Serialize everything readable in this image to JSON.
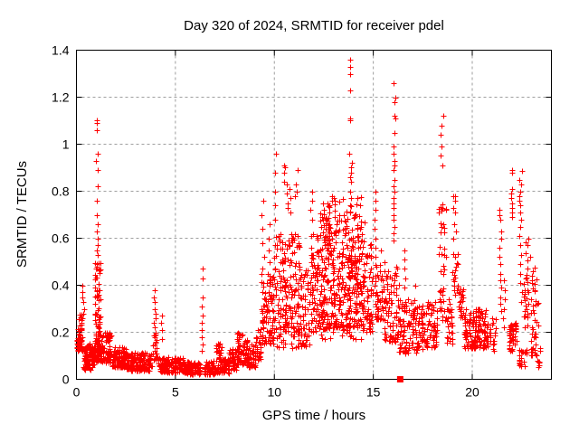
{
  "chart_data": {
    "type": "scatter",
    "title": "Day 320 of 2024, SRMTID for receiver pdel",
    "xlabel": "GPS time / hours",
    "ylabel": "SRMTID / TECUs",
    "xlim": [
      0,
      24
    ],
    "ylim": [
      0,
      1.4
    ],
    "x_ticks": [
      {
        "v": 0,
        "label": "0"
      },
      {
        "v": 5,
        "label": "5"
      },
      {
        "v": 10,
        "label": "10"
      },
      {
        "v": 15,
        "label": "15"
      },
      {
        "v": 20,
        "label": "20"
      }
    ],
    "y_ticks": [
      {
        "v": 0,
        "label": "0"
      },
      {
        "v": 0.2,
        "label": "0.2"
      },
      {
        "v": 0.4,
        "label": "0.4"
      },
      {
        "v": 0.6,
        "label": "0.6"
      },
      {
        "v": 0.8,
        "label": "0.8"
      },
      {
        "v": 1.0,
        "label": "1"
      },
      {
        "v": 1.2,
        "label": "1.2"
      },
      {
        "v": 1.4,
        "label": "1.4"
      }
    ],
    "grid": true,
    "legend": "none",
    "marker": "plus",
    "marker_color": "#ff0000",
    "grid_color": "#9e9e9e",
    "border_color": "#000000",
    "seed": 1320,
    "clusters": [
      {
        "x0": 0.0,
        "x1": 0.1,
        "n": 14,
        "y0": 0.12,
        "y1": 0.22,
        "bias": 1.0
      },
      {
        "x0": 0.1,
        "x1": 0.3,
        "n": 40,
        "y0": 0.12,
        "y1": 0.28,
        "bias": 1.2
      },
      {
        "x0": 0.33,
        "x1": 0.72,
        "n": 60,
        "y0": 0.04,
        "y1": 0.16,
        "bias": 1.3
      },
      {
        "x0": 0.72,
        "x1": 0.92,
        "n": 30,
        "y0": 0.05,
        "y1": 0.14,
        "bias": 1.2
      },
      {
        "x0": 0.92,
        "x1": 1.22,
        "n": 110,
        "y0": 0.08,
        "y1": 0.5,
        "bias": 1.9
      },
      {
        "x0": 1.22,
        "x1": 1.75,
        "n": 70,
        "y0": 0.07,
        "y1": 0.2,
        "bias": 1.5
      },
      {
        "x0": 1.75,
        "x1": 2.5,
        "n": 85,
        "y0": 0.05,
        "y1": 0.14,
        "bias": 1.4
      },
      {
        "x0": 2.5,
        "x1": 3.8,
        "n": 150,
        "y0": 0.035,
        "y1": 0.115,
        "bias": 1.3
      },
      {
        "x0": 3.85,
        "x1": 4.1,
        "n": 20,
        "y0": 0.08,
        "y1": 0.2,
        "bias": 1.2
      },
      {
        "x0": 4.1,
        "x1": 5.4,
        "n": 140,
        "y0": 0.03,
        "y1": 0.095,
        "bias": 1.3
      },
      {
        "x0": 5.4,
        "x1": 6.25,
        "n": 100,
        "y0": 0.02,
        "y1": 0.075,
        "bias": 1.2
      },
      {
        "x0": 6.45,
        "x1": 7.0,
        "n": 60,
        "y0": 0.02,
        "y1": 0.08,
        "bias": 1.2
      },
      {
        "x0": 7.0,
        "x1": 7.35,
        "n": 40,
        "y0": 0.03,
        "y1": 0.16,
        "bias": 1.6
      },
      {
        "x0": 7.35,
        "x1": 7.7,
        "n": 40,
        "y0": 0.025,
        "y1": 0.09,
        "bias": 1.2
      },
      {
        "x0": 7.7,
        "x1": 8.1,
        "n": 50,
        "y0": 0.04,
        "y1": 0.13,
        "bias": 1.2
      },
      {
        "x0": 8.1,
        "x1": 8.65,
        "n": 70,
        "y0": 0.06,
        "y1": 0.2,
        "bias": 1.2
      },
      {
        "x0": 8.65,
        "x1": 9.05,
        "n": 45,
        "y0": 0.05,
        "y1": 0.15,
        "bias": 1.2
      },
      {
        "x0": 9.05,
        "x1": 9.35,
        "n": 30,
        "y0": 0.08,
        "y1": 0.22,
        "bias": 1.2
      },
      {
        "x0": 9.35,
        "x1": 9.95,
        "n": 90,
        "y0": 0.15,
        "y1": 0.45,
        "bias": 1.4
      },
      {
        "x0": 9.95,
        "x1": 11.3,
        "n": 170,
        "y0": 0.2,
        "y1": 0.62,
        "bias": 1.4
      },
      {
        "x0": 10.1,
        "x1": 11.3,
        "n": 22,
        "y0": 0.13,
        "y1": 0.2,
        "bias": 1.0
      },
      {
        "x0": 11.3,
        "x1": 11.8,
        "n": 55,
        "y0": 0.14,
        "y1": 0.48,
        "bias": 1.3
      },
      {
        "x0": 11.8,
        "x1": 12.25,
        "n": 65,
        "y0": 0.2,
        "y1": 0.62,
        "bias": 1.4
      },
      {
        "x0": 12.25,
        "x1": 14.6,
        "n": 430,
        "y0": 0.22,
        "y1": 0.72,
        "bias": 1.3
      },
      {
        "x0": 12.25,
        "x1": 14.6,
        "n": 35,
        "y0": 0.17,
        "y1": 0.24,
        "bias": 1.0
      },
      {
        "x0": 12.3,
        "x1": 14.5,
        "n": 18,
        "y0": 0.72,
        "y1": 0.78,
        "bias": 1.0
      },
      {
        "x0": 14.6,
        "x1": 15.0,
        "n": 45,
        "y0": 0.2,
        "y1": 0.58,
        "bias": 1.3
      },
      {
        "x0": 15.1,
        "x1": 15.55,
        "n": 45,
        "y0": 0.25,
        "y1": 0.55,
        "bias": 1.3
      },
      {
        "x0": 15.55,
        "x1": 16.3,
        "n": 80,
        "y0": 0.16,
        "y1": 0.48,
        "bias": 1.4
      },
      {
        "x0": 16.3,
        "x1": 17.3,
        "n": 100,
        "y0": 0.11,
        "y1": 0.34,
        "bias": 1.3
      },
      {
        "x0": 17.3,
        "x1": 18.25,
        "n": 85,
        "y0": 0.13,
        "y1": 0.33,
        "bias": 1.2
      },
      {
        "x0": 18.3,
        "x1": 18.7,
        "n": 40,
        "y0": 0.25,
        "y1": 0.75,
        "bias": 1.3
      },
      {
        "x0": 18.7,
        "x1": 19.0,
        "n": 28,
        "y0": 0.15,
        "y1": 0.35,
        "bias": 1.2
      },
      {
        "x0": 19.0,
        "x1": 19.3,
        "n": 18,
        "y0": 0.35,
        "y1": 0.55,
        "bias": 1.2
      },
      {
        "x0": 19.3,
        "x1": 19.6,
        "n": 25,
        "y0": 0.26,
        "y1": 0.4,
        "bias": 1.2
      },
      {
        "x0": 19.6,
        "x1": 20.7,
        "n": 140,
        "y0": 0.13,
        "y1": 0.3,
        "bias": 1.3
      },
      {
        "x0": 20.7,
        "x1": 21.25,
        "n": 30,
        "y0": 0.12,
        "y1": 0.26,
        "bias": 1.2
      },
      {
        "x0": 21.85,
        "x1": 22.25,
        "n": 45,
        "y0": 0.12,
        "y1": 0.24,
        "bias": 1.2
      },
      {
        "x0": 22.35,
        "x1": 22.75,
        "n": 22,
        "y0": 0.05,
        "y1": 0.13,
        "bias": 1.0
      },
      {
        "x0": 22.6,
        "x1": 22.95,
        "n": 30,
        "y0": 0.22,
        "y1": 0.6,
        "bias": 1.4
      },
      {
        "x0": 22.95,
        "x1": 23.35,
        "n": 45,
        "y0": 0.1,
        "y1": 0.48,
        "bias": 1.5
      },
      {
        "x0": 23.25,
        "x1": 23.45,
        "n": 10,
        "y0": 0.05,
        "y1": 0.14,
        "bias": 1.0
      }
    ],
    "spike_columns": [
      {
        "x": 0.33,
        "jitter": 0.06,
        "values": [
          0.4,
          0.37,
          0.35,
          0.33,
          0.3,
          0.28,
          0.26
        ]
      },
      {
        "x": 1.05,
        "jitter": 0.05,
        "values": [
          1.1,
          1.09,
          1.06,
          0.96,
          0.93,
          0.89,
          0.82,
          0.76,
          0.7,
          0.66,
          0.63,
          0.6,
          0.57,
          0.55,
          0.53
        ]
      },
      {
        "x": 3.95,
        "jitter": 0.07,
        "values": [
          0.38,
          0.35,
          0.33,
          0.3,
          0.28,
          0.26,
          0.24,
          0.22,
          0.2,
          0.18,
          0.16
        ]
      },
      {
        "x": 4.3,
        "jitter": 0.05,
        "values": [
          0.27,
          0.24,
          0.21,
          0.17
        ]
      },
      {
        "x": 6.35,
        "jitter": 0.04,
        "values": [
          0.47,
          0.43,
          0.35,
          0.31,
          0.27,
          0.24,
          0.21,
          0.18,
          0.15,
          0.12
        ]
      },
      {
        "x": 9.42,
        "jitter": 0.05,
        "values": [
          0.76,
          0.7,
          0.64,
          0.58,
          0.52,
          0.47
        ]
      },
      {
        "x": 9.75,
        "jitter": 0.05,
        "values": [
          0.66,
          0.6,
          0.55,
          0.5
        ]
      },
      {
        "x": 10.05,
        "jitter": 0.04,
        "values": [
          0.96,
          0.88,
          0.8,
          0.74,
          0.68
        ]
      },
      {
        "x": 10.5,
        "jitter": 0.06,
        "values": [
          0.91,
          0.9,
          0.88,
          0.84
        ]
      },
      {
        "x": 10.75,
        "jitter": 0.12,
        "values": [
          0.83,
          0.81,
          0.79,
          0.77,
          0.75,
          0.73,
          0.71
        ]
      },
      {
        "x": 11.1,
        "jitter": 0.08,
        "values": [
          0.89,
          0.83,
          0.8,
          0.78
        ]
      },
      {
        "x": 11.85,
        "jitter": 0.06,
        "values": [
          0.8,
          0.76,
          0.72,
          0.68
        ]
      },
      {
        "x": 13.85,
        "jitter": 0.06,
        "values": [
          1.36,
          1.33,
          1.3,
          1.23,
          1.11,
          1.1,
          0.96,
          0.92,
          0.9,
          0.88,
          0.86,
          0.84,
          0.8,
          0.77,
          0.74
        ]
      },
      {
        "x": 15.1,
        "jitter": 0.05,
        "values": [
          0.8,
          0.76,
          0.72,
          0.68,
          0.64,
          0.6,
          0.56,
          0.52,
          0.48,
          0.44,
          0.4,
          0.36,
          0.32,
          0.28
        ]
      },
      {
        "x": 16.05,
        "jitter": 0.05,
        "values": [
          1.26,
          1.2,
          1.18,
          1.12,
          1.11,
          1.05,
          0.99,
          0.96,
          0.93,
          0.91,
          0.89,
          0.85,
          0.82,
          0.8,
          0.77,
          0.75,
          0.73,
          0.7,
          0.68,
          0.65,
          0.62,
          0.59
        ]
      },
      {
        "x": 16.6,
        "jitter": 0.06,
        "values": [
          0.55,
          0.51,
          0.47,
          0.43,
          0.39
        ]
      },
      {
        "x": 18.5,
        "jitter": 0.1,
        "values": [
          1.12,
          1.08,
          1.04,
          0.99,
          0.95,
          0.91,
          0.73,
          0.66
        ]
      },
      {
        "x": 19.1,
        "jitter": 0.07,
        "values": [
          0.78,
          0.76,
          0.73,
          0.71,
          0.66,
          0.63,
          0.6
        ]
      },
      {
        "x": 21.4,
        "jitter": 0.06,
        "values": [
          0.72,
          0.7,
          0.68,
          0.63,
          0.6,
          0.56,
          0.52,
          0.49,
          0.45,
          0.42,
          0.39,
          0.35,
          0.32,
          0.29
        ]
      },
      {
        "x": 21.62,
        "jitter": 0.05,
        "values": [
          0.42,
          0.38,
          0.34,
          0.3,
          0.26,
          0.22
        ]
      },
      {
        "x": 22.0,
        "jitter": 0.06,
        "values": [
          0.89,
          0.88,
          0.81,
          0.79,
          0.77,
          0.75,
          0.73,
          0.71,
          0.69
        ]
      },
      {
        "x": 22.45,
        "jitter": 0.07,
        "values": [
          0.885,
          0.85,
          0.83,
          0.8,
          0.78,
          0.76,
          0.74,
          0.71,
          0.68,
          0.65,
          0.61,
          0.57,
          0.53,
          0.49,
          0.45,
          0.41,
          0.37,
          0.33
        ]
      }
    ],
    "extra_points": [
      [
        17.1,
        0.4
      ],
      [
        19.03,
        0.78
      ],
      [
        19.05,
        0.73
      ]
    ],
    "square_markers": [
      [
        16.36,
        0.0
      ]
    ]
  }
}
